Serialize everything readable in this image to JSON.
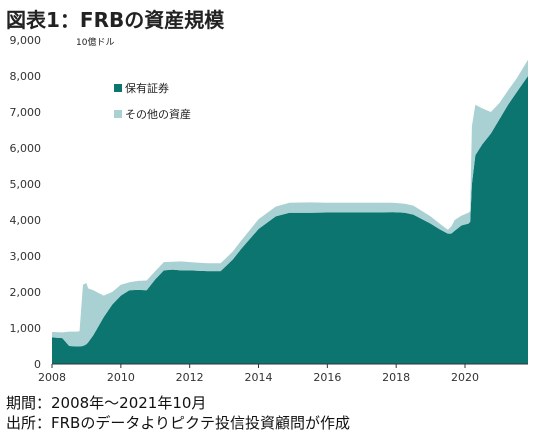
{
  "title": "図表1：FRBの資産規模",
  "footnote_period": "期間：2008年～2021年10月",
  "footnote_source": "出所：FRBのデータよりピクテ投信投資顧問が作成",
  "chart_data": {
    "type": "area",
    "title": "図表1：FRBの資産規模",
    "unit_label": "10億ドル",
    "stacked": true,
    "ylim": [
      0,
      9000
    ],
    "yticks": [
      0,
      1000,
      2000,
      3000,
      4000,
      5000,
      6000,
      7000,
      8000,
      9000
    ],
    "ytick_labels": [
      "0",
      "1,000",
      "2,000",
      "3,000",
      "4,000",
      "5,000",
      "6,000",
      "7,000",
      "8,000",
      "9,000"
    ],
    "xlim": [
      2008.0,
      2021.83
    ],
    "xticks": [
      2008,
      2010,
      2012,
      2014,
      2016,
      2018,
      2020
    ],
    "xtick_labels": [
      "2008",
      "2010",
      "2012",
      "2014",
      "2016",
      "2018",
      "2020"
    ],
    "grid": false,
    "legend_position": "upper-left",
    "x": [
      2008.0,
      2008.3,
      2008.5,
      2008.7,
      2008.8,
      2008.9,
      2009.0,
      2009.05,
      2009.2,
      2009.5,
      2009.75,
      2010.0,
      2010.25,
      2010.5,
      2010.75,
      2011.0,
      2011.25,
      2011.5,
      2011.75,
      2012.0,
      2012.5,
      2012.9,
      2013.25,
      2013.5,
      2014.0,
      2014.5,
      2014.9,
      2015.5,
      2016.0,
      2016.5,
      2017.0,
      2017.5,
      2017.9,
      2018.25,
      2018.5,
      2019.0,
      2019.25,
      2019.5,
      2019.6,
      2019.7,
      2019.9,
      2020.1,
      2020.15,
      2020.2,
      2020.3,
      2020.5,
      2020.75,
      2021.0,
      2021.25,
      2021.5,
      2021.83
    ],
    "series": [
      {
        "name": "保有証券",
        "color": "#0d7570",
        "values": [
          740,
          720,
          500,
          490,
          490,
          500,
          550,
          600,
          800,
          1300,
          1650,
          1900,
          2050,
          2060,
          2050,
          2350,
          2600,
          2620,
          2600,
          2600,
          2580,
          2580,
          2900,
          3200,
          3750,
          4100,
          4200,
          4200,
          4210,
          4210,
          4210,
          4210,
          4220,
          4200,
          4150,
          3900,
          3750,
          3620,
          3620,
          3700,
          3850,
          3900,
          3950,
          5000,
          5800,
          6100,
          6400,
          6800,
          7200,
          7550,
          8000
        ]
      },
      {
        "name": "その他の資産",
        "color": "#a9d0d2",
        "values": [
          150,
          160,
          400,
          410,
          420,
          1700,
          1700,
          1500,
          1250,
          600,
          350,
          300,
          220,
          250,
          270,
          230,
          230,
          220,
          250,
          230,
          220,
          220,
          220,
          230,
          270,
          270,
          280,
          290,
          270,
          270,
          270,
          270,
          260,
          250,
          250,
          200,
          160,
          110,
          200,
          300,
          270,
          300,
          300,
          1600,
          1400,
          1000,
          600,
          450,
          400,
          380,
          450
        ]
      }
    ]
  }
}
